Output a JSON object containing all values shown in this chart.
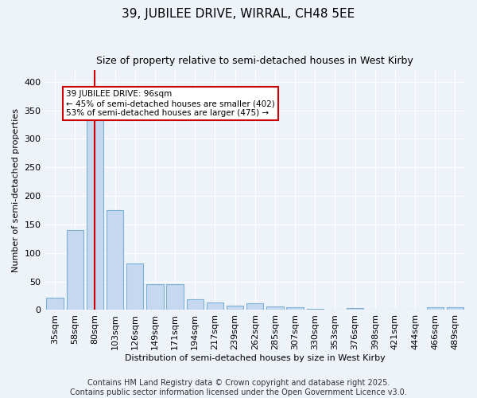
{
  "title": "39, JUBILEE DRIVE, WIRRAL, CH48 5EE",
  "subtitle": "Size of property relative to semi-detached houses in West Kirby",
  "xlabel": "Distribution of semi-detached houses by size in West Kirby",
  "ylabel": "Number of semi-detached properties",
  "categories": [
    "35sqm",
    "58sqm",
    "80sqm",
    "103sqm",
    "126sqm",
    "149sqm",
    "171sqm",
    "194sqm",
    "217sqm",
    "239sqm",
    "262sqm",
    "285sqm",
    "307sqm",
    "330sqm",
    "353sqm",
    "376sqm",
    "398sqm",
    "421sqm",
    "444sqm",
    "466sqm",
    "489sqm"
  ],
  "values": [
    22,
    140,
    340,
    175,
    82,
    45,
    45,
    19,
    13,
    8,
    12,
    6,
    5,
    2,
    0,
    3,
    0,
    0,
    0,
    5,
    5
  ],
  "bar_color": "#c5d8f0",
  "bar_edge_color": "#7bafd4",
  "vline_index": 2,
  "vline_color": "#cc0000",
  "annotation_text": "39 JUBILEE DRIVE: 96sqm\n← 45% of semi-detached houses are smaller (402)\n53% of semi-detached houses are larger (475) →",
  "annotation_box_color": "#ffffff",
  "annotation_box_edge_color": "#cc0000",
  "ylim": [
    0,
    420
  ],
  "yticks": [
    0,
    50,
    100,
    150,
    200,
    250,
    300,
    350,
    400
  ],
  "footer": "Contains HM Land Registry data © Crown copyright and database right 2025.\nContains public sector information licensed under the Open Government Licence v3.0.",
  "bg_color": "#eef2f9",
  "grid_color": "#ffffff",
  "title_fontsize": 11,
  "subtitle_fontsize": 9,
  "footer_fontsize": 7,
  "ann_fontsize": 7.5,
  "xlabel_fontsize": 8,
  "ylabel_fontsize": 8
}
